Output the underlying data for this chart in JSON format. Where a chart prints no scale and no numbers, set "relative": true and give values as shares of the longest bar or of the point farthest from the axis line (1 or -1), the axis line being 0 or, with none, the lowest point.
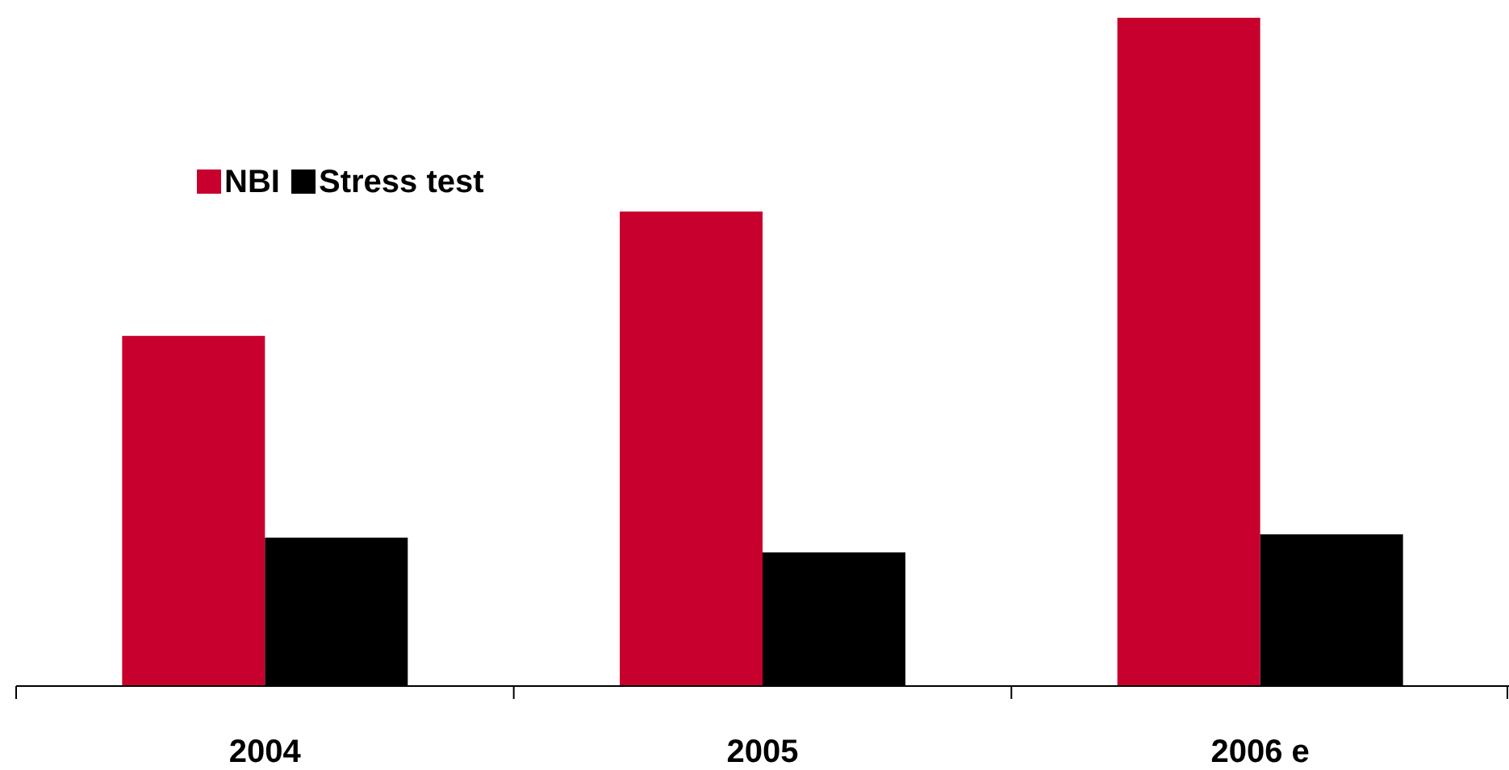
{
  "chart_data": {
    "type": "bar",
    "relative": true,
    "categories": [
      "2004",
      "2005",
      "2006 e"
    ],
    "series": [
      {
        "name": "NBI",
        "color": "#c8002d",
        "values": [
          0.524,
          0.71,
          1
        ]
      },
      {
        "name": "Stress test",
        "color": "#000000",
        "values": [
          0.222,
          0.2,
          0.227
        ]
      }
    ],
    "legend": "top left"
  }
}
